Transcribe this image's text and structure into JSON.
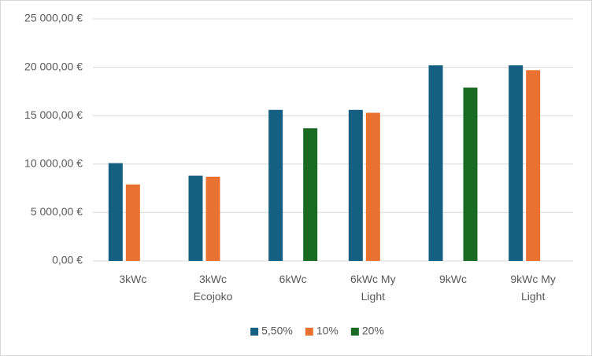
{
  "chart_data": {
    "type": "bar",
    "categories": [
      "3kWc",
      "3kWc Ecojoko",
      "6kWc",
      "6kWc My Light",
      "9kWc",
      "9kWc My Light"
    ],
    "series": [
      {
        "name": "5,50%",
        "color": "#156082",
        "values": [
          10100,
          8800,
          15600,
          15600,
          20200,
          20200
        ]
      },
      {
        "name": "10%",
        "color": "#e97132",
        "values": [
          7900,
          8700,
          null,
          15300,
          null,
          19700
        ]
      },
      {
        "name": "20%",
        "color": "#196b24",
        "values": [
          null,
          null,
          13700,
          null,
          17900,
          null
        ]
      }
    ],
    "ylim": [
      0,
      25000
    ],
    "yticks": [
      {
        "value": 0,
        "label": "0,00 €"
      },
      {
        "value": 5000,
        "label": "5 000,00 €"
      },
      {
        "value": 10000,
        "label": "10 000,00 €"
      },
      {
        "value": 15000,
        "label": "15 000,00 €"
      },
      {
        "value": 20000,
        "label": "20 000,00 €"
      },
      {
        "value": 25000,
        "label": "25 000,00 €"
      }
    ],
    "grid": true,
    "legend": "bottom"
  }
}
